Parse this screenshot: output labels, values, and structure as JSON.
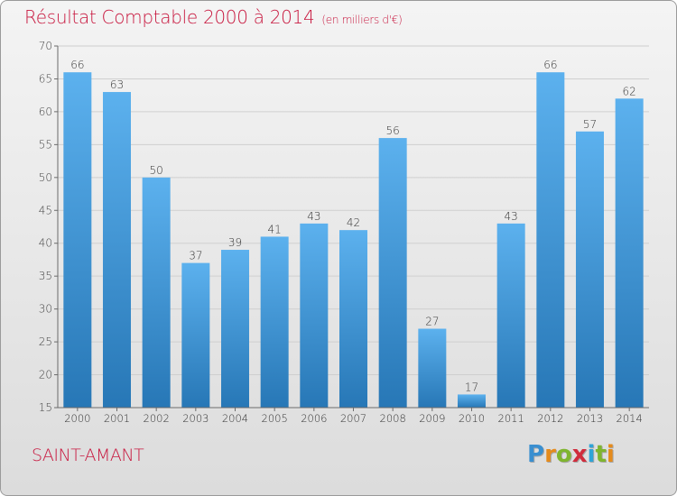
{
  "header": {
    "title": "Résultat Comptable 2000 à 2014",
    "subtitle": "(en milliers d'€)"
  },
  "footer": {
    "city": "SAINT-AMANT",
    "logo_letters": [
      "P",
      "r",
      "o",
      "x",
      "i",
      "t",
      "i"
    ],
    "logo_colors": [
      "#3a8fd0",
      "#e58b1c",
      "#7fb52f",
      "#d02c3c",
      "#2fa4d7",
      "#7fb52f",
      "#e58b1c"
    ]
  },
  "colors": {
    "bar_light": "#5cb1ee",
    "bar_dark": "#2777b6",
    "grid": "#cfcfcf",
    "axis": "#6b6b6b"
  },
  "chart_data": {
    "type": "bar",
    "title": "Résultat Comptable 2000 à 2014",
    "subtitle": "(en milliers d'€)",
    "xlabel": "",
    "ylabel": "",
    "ylim": [
      15,
      70
    ],
    "yticks": [
      15,
      20,
      25,
      30,
      35,
      40,
      45,
      50,
      55,
      60,
      65,
      70
    ],
    "grid": true,
    "categories": [
      "2000",
      "2001",
      "2002",
      "2003",
      "2004",
      "2005",
      "2006",
      "2007",
      "2008",
      "2009",
      "2010",
      "2011",
      "2012",
      "2013",
      "2014"
    ],
    "values": [
      66,
      63,
      50,
      37,
      39,
      41,
      43,
      42,
      56,
      27,
      17,
      43,
      66,
      57,
      62
    ]
  }
}
